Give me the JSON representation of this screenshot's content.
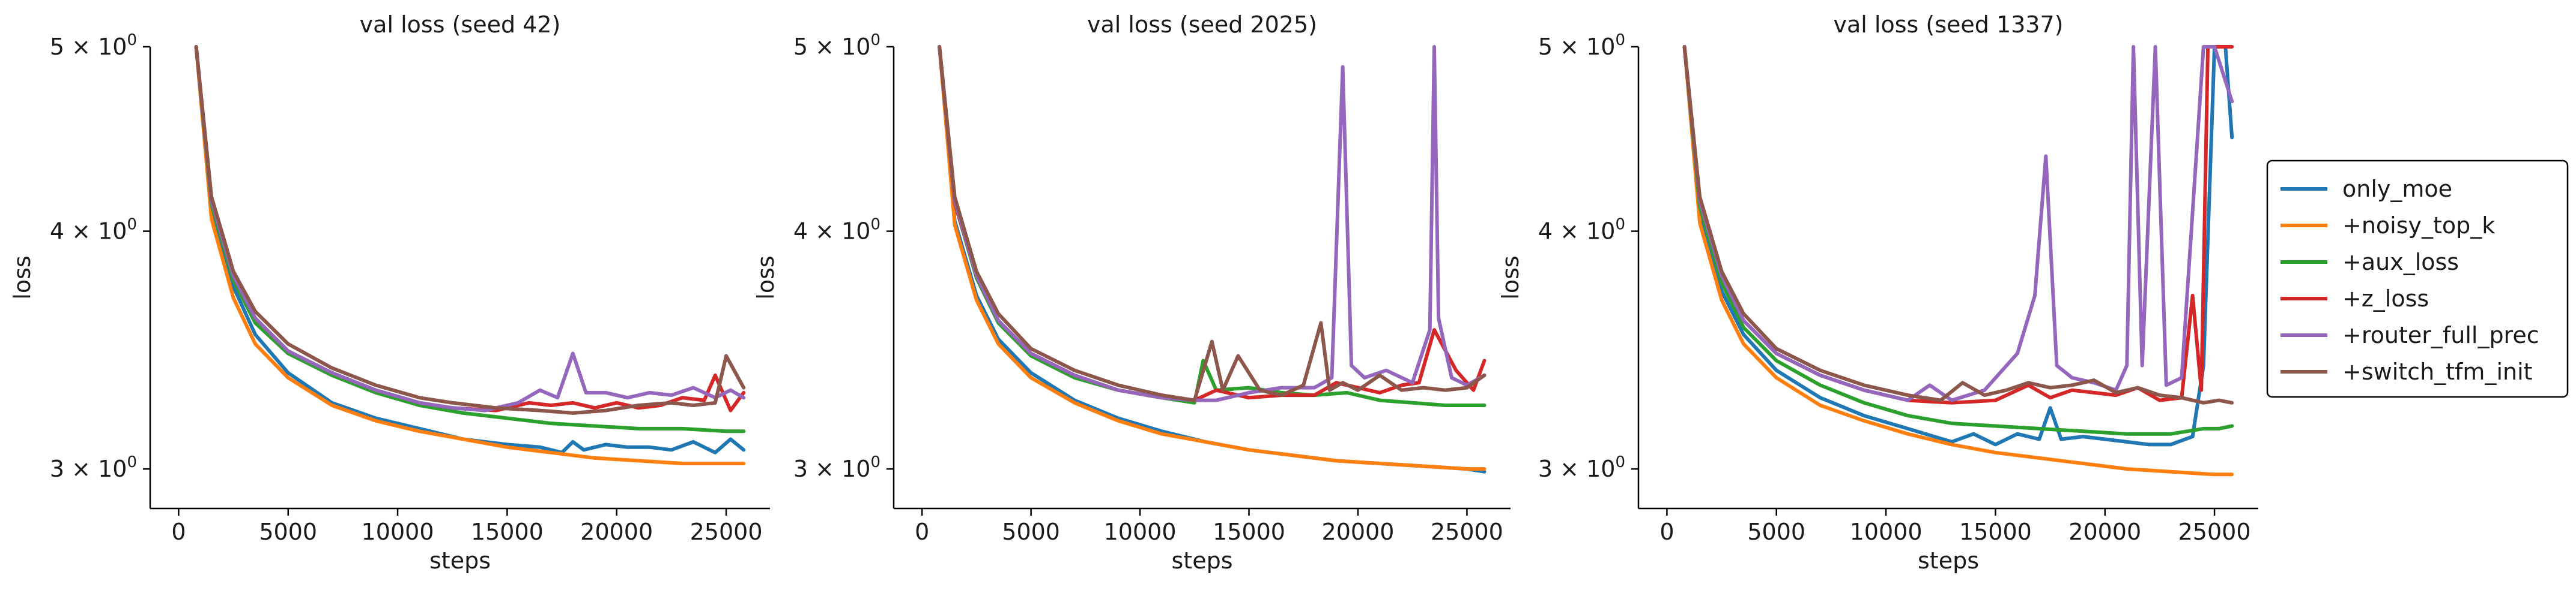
{
  "chart_data": [
    {
      "type": "line",
      "title": "val loss  (seed 42)",
      "xlabel": "steps",
      "ylabel": "loss",
      "xlim": [
        -1300,
        27000
      ],
      "ylim": [
        2.86,
        5.0
      ],
      "yscale": "log",
      "xticks": [
        0,
        5000,
        10000,
        15000,
        20000,
        25000
      ],
      "xtick_labels": [
        "0",
        "5000",
        "10000",
        "15000",
        "20000",
        "25000"
      ],
      "yticks": [
        3,
        4,
        5
      ],
      "ytick_labels": [
        {
          "base": "3 × 10",
          "exp": "0"
        },
        {
          "base": "4 × 10",
          "exp": "0"
        },
        {
          "base": "5 × 10",
          "exp": "0"
        }
      ],
      "series": [
        {
          "name": "only_moe",
          "x": [
            800,
            1500,
            2500,
            3500,
            5000,
            7000,
            9000,
            11000,
            13000,
            15000,
            16500,
            17500,
            18000,
            18500,
            19500,
            20500,
            21500,
            22500,
            23500,
            24500,
            25200,
            25800
          ],
          "y": [
            5.0,
            4.12,
            3.74,
            3.53,
            3.37,
            3.25,
            3.19,
            3.15,
            3.11,
            3.09,
            3.08,
            3.06,
            3.1,
            3.07,
            3.09,
            3.08,
            3.08,
            3.07,
            3.1,
            3.06,
            3.11,
            3.07
          ]
        },
        {
          "name": "+noisy_top_k",
          "x": [
            800,
            1500,
            2500,
            3500,
            5000,
            7000,
            9000,
            11000,
            13000,
            15000,
            17000,
            19000,
            21000,
            23000,
            25000,
            25800
          ],
          "y": [
            5.0,
            4.06,
            3.69,
            3.49,
            3.35,
            3.24,
            3.18,
            3.14,
            3.11,
            3.08,
            3.06,
            3.04,
            3.03,
            3.02,
            3.02,
            3.02
          ]
        },
        {
          "name": "+aux_loss",
          "x": [
            800,
            1500,
            2500,
            3500,
            5000,
            7000,
            9000,
            11000,
            13000,
            15000,
            17000,
            19000,
            21000,
            23000,
            25000,
            25800
          ],
          "y": [
            5.0,
            4.13,
            3.77,
            3.58,
            3.45,
            3.36,
            3.29,
            3.24,
            3.21,
            3.19,
            3.17,
            3.16,
            3.15,
            3.15,
            3.14,
            3.14
          ]
        },
        {
          "name": "+z_loss",
          "x": [
            800,
            1500,
            2500,
            3500,
            5000,
            7000,
            9000,
            11000,
            12500,
            14500,
            16000,
            17000,
            18000,
            19000,
            20000,
            21000,
            22000,
            23000,
            24000,
            24500,
            25200,
            25800
          ],
          "y": [
            5.0,
            4.15,
            3.79,
            3.6,
            3.46,
            3.37,
            3.3,
            3.25,
            3.23,
            3.22,
            3.25,
            3.24,
            3.25,
            3.23,
            3.25,
            3.23,
            3.24,
            3.27,
            3.26,
            3.36,
            3.22,
            3.29
          ]
        },
        {
          "name": "+router_full_prec",
          "x": [
            800,
            1500,
            2500,
            3500,
            5000,
            7000,
            9000,
            11000,
            12500,
            14000,
            15500,
            16500,
            17300,
            18000,
            18600,
            19500,
            20500,
            21500,
            22500,
            23500,
            24500,
            25200,
            25800
          ],
          "y": [
            5.0,
            4.15,
            3.79,
            3.6,
            3.46,
            3.37,
            3.3,
            3.25,
            3.23,
            3.22,
            3.25,
            3.3,
            3.27,
            3.45,
            3.29,
            3.29,
            3.27,
            3.29,
            3.28,
            3.31,
            3.27,
            3.3,
            3.27
          ]
        },
        {
          "name": "+switch_tfm_init",
          "x": [
            800,
            1500,
            2500,
            3500,
            5000,
            7000,
            9000,
            11000,
            12500,
            14500,
            16500,
            18000,
            19500,
            21000,
            22500,
            23500,
            24500,
            25000,
            25800
          ],
          "y": [
            5.0,
            4.17,
            3.81,
            3.63,
            3.49,
            3.39,
            3.32,
            3.27,
            3.25,
            3.23,
            3.22,
            3.21,
            3.22,
            3.24,
            3.25,
            3.24,
            3.25,
            3.44,
            3.31
          ]
        }
      ]
    },
    {
      "type": "line",
      "title": "val loss  (seed 2025)",
      "xlabel": "steps",
      "ylabel": "loss",
      "xlim": [
        -1300,
        27000
      ],
      "ylim": [
        2.86,
        5.0
      ],
      "yscale": "log",
      "xticks": [
        0,
        5000,
        10000,
        15000,
        20000,
        25000
      ],
      "xtick_labels": [
        "0",
        "5000",
        "10000",
        "15000",
        "20000",
        "25000"
      ],
      "yticks": [
        3,
        4,
        5
      ],
      "ytick_labels": [
        {
          "base": "3 × 10",
          "exp": "0"
        },
        {
          "base": "4 × 10",
          "exp": "0"
        },
        {
          "base": "5 × 10",
          "exp": "0"
        }
      ],
      "series": [
        {
          "name": "only_moe",
          "x": [
            800,
            1500,
            2500,
            3500,
            5000,
            7000,
            9000,
            11000,
            13000,
            15000,
            17000,
            19000,
            21000,
            23000,
            25000,
            25800
          ],
          "y": [
            5.0,
            4.05,
            3.7,
            3.51,
            3.37,
            3.26,
            3.19,
            3.14,
            3.1,
            3.07,
            3.05,
            3.03,
            3.02,
            3.01,
            3.0,
            2.99
          ]
        },
        {
          "name": "+noisy_top_k",
          "x": [
            800,
            1500,
            2500,
            3500,
            5000,
            7000,
            9000,
            11000,
            13000,
            15000,
            17000,
            19000,
            21000,
            23000,
            25000,
            25800
          ],
          "y": [
            5.0,
            4.03,
            3.68,
            3.49,
            3.35,
            3.25,
            3.18,
            3.13,
            3.1,
            3.07,
            3.05,
            3.03,
            3.02,
            3.01,
            3.0,
            3.0
          ]
        },
        {
          "name": "+aux_loss",
          "x": [
            800,
            1500,
            2500,
            3500,
            5000,
            7000,
            9000,
            11000,
            12500,
            12900,
            13500,
            15000,
            16500,
            18000,
            19500,
            21000,
            22500,
            24000,
            25000,
            25800
          ],
          "y": [
            5.0,
            4.14,
            3.78,
            3.58,
            3.44,
            3.35,
            3.3,
            3.27,
            3.25,
            3.42,
            3.3,
            3.31,
            3.29,
            3.28,
            3.29,
            3.26,
            3.25,
            3.24,
            3.24,
            3.24
          ]
        },
        {
          "name": "+z_loss",
          "x": [
            800,
            1500,
            2500,
            3500,
            5000,
            7000,
            9000,
            11000,
            12500,
            13500,
            15000,
            16500,
            18000,
            19000,
            20000,
            21000,
            22000,
            22800,
            23500,
            24500,
            25300,
            25800
          ],
          "y": [
            5.0,
            4.14,
            3.79,
            3.59,
            3.45,
            3.36,
            3.3,
            3.27,
            3.26,
            3.3,
            3.27,
            3.28,
            3.28,
            3.33,
            3.31,
            3.29,
            3.32,
            3.33,
            3.55,
            3.38,
            3.3,
            3.42
          ]
        },
        {
          "name": "+router_full_prec",
          "x": [
            800,
            1500,
            2500,
            3500,
            5000,
            7000,
            9000,
            11000,
            12500,
            13500,
            15000,
            16500,
            18000,
            18800,
            19300,
            19700,
            20300,
            21300,
            22500,
            23300,
            23500,
            23700,
            24300,
            25000,
            25800
          ],
          "y": [
            5.0,
            4.15,
            3.79,
            3.59,
            3.45,
            3.36,
            3.3,
            3.27,
            3.26,
            3.26,
            3.29,
            3.31,
            3.31,
            3.35,
            4.88,
            3.4,
            3.35,
            3.38,
            3.33,
            3.55,
            5.0,
            3.6,
            3.35,
            3.32,
            3.36
          ]
        },
        {
          "name": "+switch_tfm_init",
          "x": [
            800,
            1500,
            2500,
            3500,
            5000,
            7000,
            9000,
            11000,
            12500,
            13300,
            13800,
            14500,
            15500,
            16500,
            17500,
            18300,
            18700,
            19300,
            20000,
            21000,
            22000,
            23000,
            24000,
            25000,
            25800
          ],
          "y": [
            5.0,
            4.17,
            3.81,
            3.62,
            3.47,
            3.38,
            3.32,
            3.28,
            3.26,
            3.5,
            3.3,
            3.44,
            3.3,
            3.28,
            3.32,
            3.58,
            3.3,
            3.33,
            3.3,
            3.36,
            3.3,
            3.31,
            3.3,
            3.31,
            3.36
          ]
        }
      ]
    },
    {
      "type": "line",
      "title": "val loss  (seed 1337)",
      "xlabel": "steps",
      "ylabel": "loss",
      "xlim": [
        -1300,
        27000
      ],
      "ylim": [
        2.86,
        5.0
      ],
      "yscale": "log",
      "xticks": [
        0,
        5000,
        10000,
        15000,
        20000,
        25000
      ],
      "xtick_labels": [
        "0",
        "5000",
        "10000",
        "15000",
        "20000",
        "25000"
      ],
      "yticks": [
        3,
        4,
        5
      ],
      "ytick_labels": [
        {
          "base": "3 × 10",
          "exp": "0"
        },
        {
          "base": "4 × 10",
          "exp": "0"
        },
        {
          "base": "5 × 10",
          "exp": "0"
        }
      ],
      "series": [
        {
          "name": "only_moe",
          "x": [
            800,
            1500,
            2500,
            3500,
            5000,
            7000,
            9000,
            11000,
            13000,
            14000,
            15000,
            16000,
            17000,
            17500,
            18000,
            19000,
            20000,
            21000,
            22000,
            23000,
            24000,
            24500,
            25000,
            25500,
            25800
          ],
          "y": [
            5.0,
            4.08,
            3.72,
            3.53,
            3.38,
            3.27,
            3.2,
            3.15,
            3.1,
            3.13,
            3.09,
            3.13,
            3.11,
            3.23,
            3.11,
            3.12,
            3.11,
            3.1,
            3.09,
            3.09,
            3.12,
            3.4,
            5.0,
            5.0,
            4.48
          ]
        },
        {
          "name": "+noisy_top_k",
          "x": [
            800,
            1500,
            2500,
            3500,
            5000,
            7000,
            9000,
            11000,
            13000,
            15000,
            17000,
            19000,
            21000,
            23000,
            25000,
            25800
          ],
          "y": [
            5.0,
            4.04,
            3.68,
            3.49,
            3.35,
            3.24,
            3.18,
            3.13,
            3.09,
            3.06,
            3.04,
            3.02,
            3.0,
            2.99,
            2.98,
            2.98
          ]
        },
        {
          "name": "+aux_loss",
          "x": [
            800,
            1500,
            2500,
            3500,
            5000,
            7000,
            9000,
            11000,
            13000,
            15000,
            17000,
            19000,
            21000,
            23000,
            24500,
            25200,
            25800
          ],
          "y": [
            5.0,
            4.12,
            3.76,
            3.56,
            3.42,
            3.32,
            3.25,
            3.2,
            3.17,
            3.16,
            3.15,
            3.14,
            3.13,
            3.13,
            3.15,
            3.15,
            3.16
          ]
        },
        {
          "name": "+z_loss",
          "x": [
            800,
            1500,
            2500,
            3500,
            5000,
            7000,
            9000,
            11000,
            13000,
            15000,
            16500,
            17500,
            18500,
            19500,
            20500,
            21500,
            22500,
            23500,
            24000,
            24400,
            24700,
            25000,
            25800
          ],
          "y": [
            5.0,
            4.15,
            3.79,
            3.59,
            3.45,
            3.36,
            3.3,
            3.26,
            3.25,
            3.26,
            3.32,
            3.27,
            3.3,
            3.29,
            3.28,
            3.31,
            3.26,
            3.27,
            3.7,
            3.3,
            5.0,
            5.0,
            5.0
          ]
        },
        {
          "name": "+router_full_prec",
          "x": [
            800,
            1500,
            2500,
            3500,
            5000,
            7000,
            9000,
            11000,
            12000,
            13000,
            14500,
            16000,
            16800,
            17300,
            17800,
            18500,
            19500,
            20500,
            21000,
            21300,
            21700,
            22300,
            22800,
            23500,
            24500,
            25000,
            25800
          ],
          "y": [
            5.0,
            4.15,
            3.79,
            3.59,
            3.45,
            3.36,
            3.3,
            3.26,
            3.32,
            3.26,
            3.3,
            3.45,
            3.7,
            4.38,
            3.4,
            3.35,
            3.33,
            3.3,
            3.4,
            5.0,
            3.4,
            5.0,
            3.32,
            3.35,
            5.0,
            5.0,
            4.68
          ]
        },
        {
          "name": "+switch_tfm_init",
          "x": [
            800,
            1500,
            2500,
            3500,
            5000,
            7000,
            9000,
            11000,
            12500,
            13500,
            14500,
            15500,
            16500,
            17500,
            18500,
            19500,
            20500,
            21500,
            22500,
            23500,
            24500,
            25200,
            25800
          ],
          "y": [
            5.0,
            4.17,
            3.81,
            3.62,
            3.47,
            3.38,
            3.32,
            3.28,
            3.26,
            3.33,
            3.28,
            3.3,
            3.33,
            3.31,
            3.32,
            3.34,
            3.29,
            3.31,
            3.28,
            3.27,
            3.25,
            3.26,
            3.25
          ]
        }
      ]
    }
  ],
  "legend": {
    "placement": "right",
    "entries": [
      {
        "label": "only_moe",
        "color": "#1f77b4"
      },
      {
        "label": "+noisy_top_k",
        "color": "#ff7f0e"
      },
      {
        "label": "+aux_loss",
        "color": "#2ca02c"
      },
      {
        "label": "+z_loss",
        "color": "#d62728"
      },
      {
        "label": "+router_full_prec",
        "color": "#9467bd"
      },
      {
        "label": "+switch_tfm_init",
        "color": "#8c564b"
      }
    ]
  }
}
